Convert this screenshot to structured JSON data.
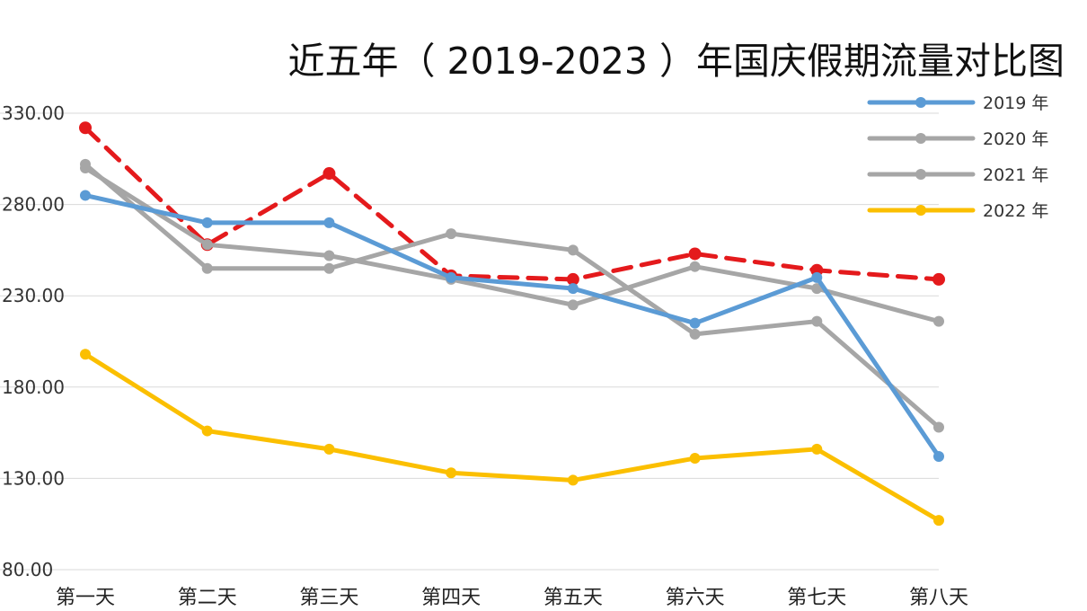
{
  "chart_data": {
    "type": "line",
    "title": "近五年（ 2019-2023 ）年国庆假期流量对比图",
    "xlabel": "",
    "ylabel": "",
    "categories": [
      "第一天",
      "第二天",
      "第三天",
      "第四天",
      "第五天",
      "第六天",
      "第七天",
      "第八天"
    ],
    "y_ticks": [
      "80.00",
      "130.00",
      "180.00",
      "230.00",
      "280.00",
      "330.00"
    ],
    "ylim": [
      80,
      330
    ],
    "grid": true,
    "legend_position": "top-right",
    "series": [
      {
        "name": "",
        "color": "#e41a1c",
        "dashed": true,
        "values": [
          322,
          258,
          297,
          241,
          239,
          253,
          244,
          239
        ]
      },
      {
        "name": "2020 年",
        "color": "#a6a6a6",
        "dashed": false,
        "values": [
          300,
          258,
          252,
          239,
          225,
          246,
          234,
          216
        ]
      },
      {
        "name": "2021 年",
        "color": "#a6a6a6",
        "dashed": false,
        "values": [
          302,
          245,
          245,
          264,
          255,
          209,
          216,
          158
        ]
      },
      {
        "name": "2019 年",
        "color": "#5b9bd5",
        "dashed": false,
        "values": [
          285,
          270,
          270,
          240,
          234,
          215,
          240,
          142
        ]
      },
      {
        "name": "2022 年",
        "color": "#fbbf00",
        "dashed": false,
        "values": [
          198,
          156,
          146,
          133,
          129,
          141,
          146,
          107
        ]
      }
    ],
    "legend_order": [
      "2019 年",
      "2020 年",
      "2021 年",
      "2022 年"
    ]
  }
}
